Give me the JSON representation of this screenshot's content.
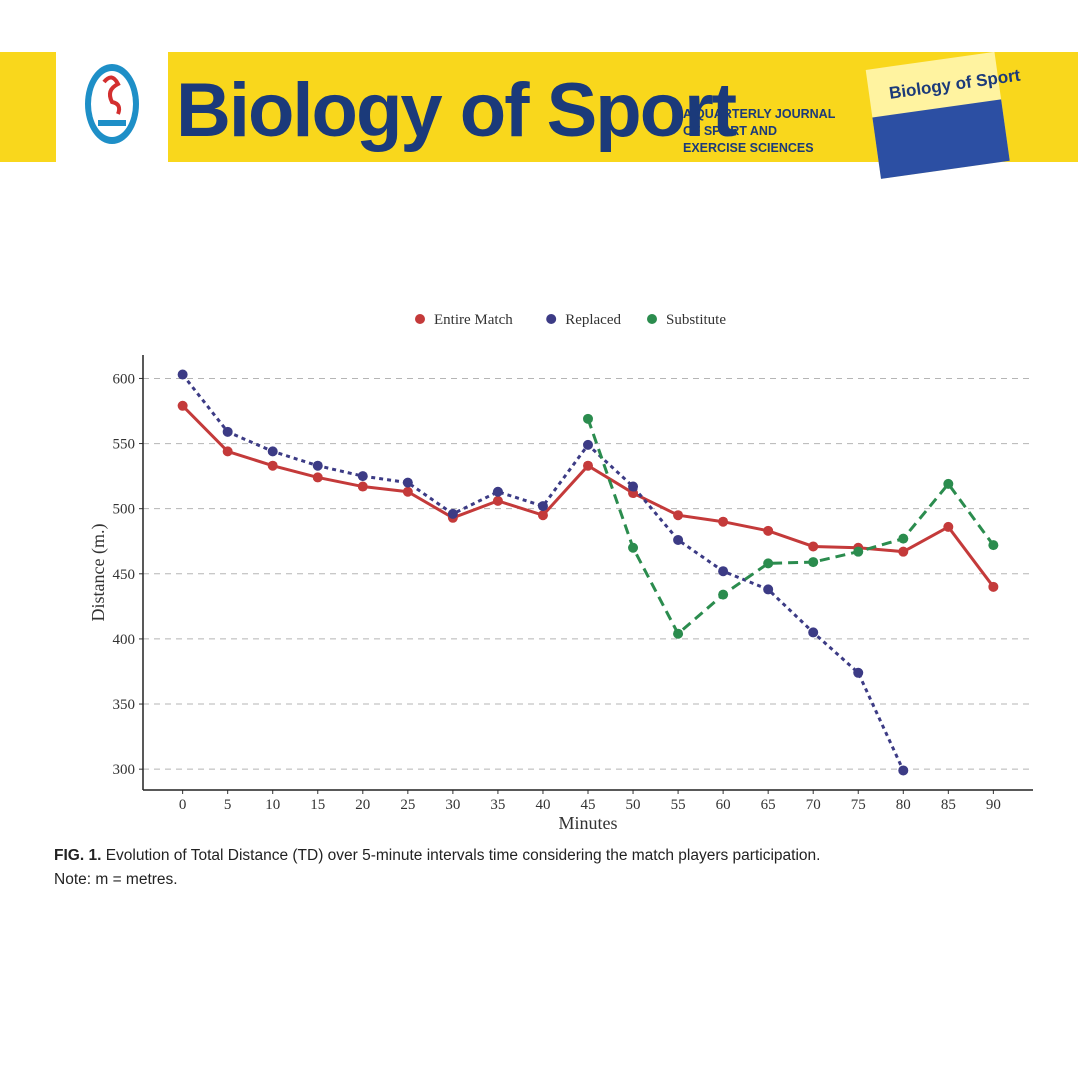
{
  "header": {
    "title": "Biology of Sport",
    "subtitle_lines": [
      "A QUARTERLY JOURNAL",
      "OF SPORT AND",
      "EXERCISE SCIENCES"
    ]
  },
  "chart_data": {
    "type": "line",
    "x_label": "Minutes",
    "y_label": "Distance (m.)",
    "x": [
      0,
      5,
      10,
      15,
      20,
      25,
      30,
      35,
      40,
      45,
      50,
      55,
      60,
      65,
      70,
      75,
      80,
      85,
      90
    ],
    "series": [
      {
        "name": "Entire Match",
        "color": "#c43a3a",
        "line_style": "solid",
        "values": [
          579,
          544,
          533,
          524,
          517,
          513,
          493,
          506,
          495,
          533,
          512,
          495,
          490,
          483,
          471,
          470,
          467,
          486,
          440
        ]
      },
      {
        "name": "Replaced",
        "color": "#3c3b85",
        "line_style": "dotted",
        "values": [
          603,
          559,
          544,
          533,
          525,
          520,
          496,
          513,
          502,
          549,
          517,
          476,
          452,
          438,
          405,
          374,
          299,
          null,
          null
        ]
      },
      {
        "name": "Substitute",
        "color": "#2b8c4e",
        "line_style": "dashed",
        "values": [
          null,
          null,
          null,
          null,
          null,
          null,
          null,
          null,
          null,
          569,
          470,
          404,
          434,
          458,
          459,
          467,
          477,
          519,
          472
        ]
      }
    ],
    "xlim": [
      -4.4,
      94.4
    ],
    "xticks": [
      0,
      5,
      10,
      15,
      20,
      25,
      30,
      35,
      40,
      45,
      50,
      55,
      60,
      65,
      70,
      75,
      80,
      85,
      90
    ],
    "ylim": [
      284,
      618
    ],
    "yticks": [
      300,
      350,
      400,
      450,
      500,
      550,
      600
    ],
    "grid": true,
    "legend": "top"
  },
  "caption": {
    "label": "FIG. 1.",
    "text": "Evolution of Total Distance (TD) over 5-minute intervals time considering the match players participation.",
    "note": "Note: m = metres."
  }
}
